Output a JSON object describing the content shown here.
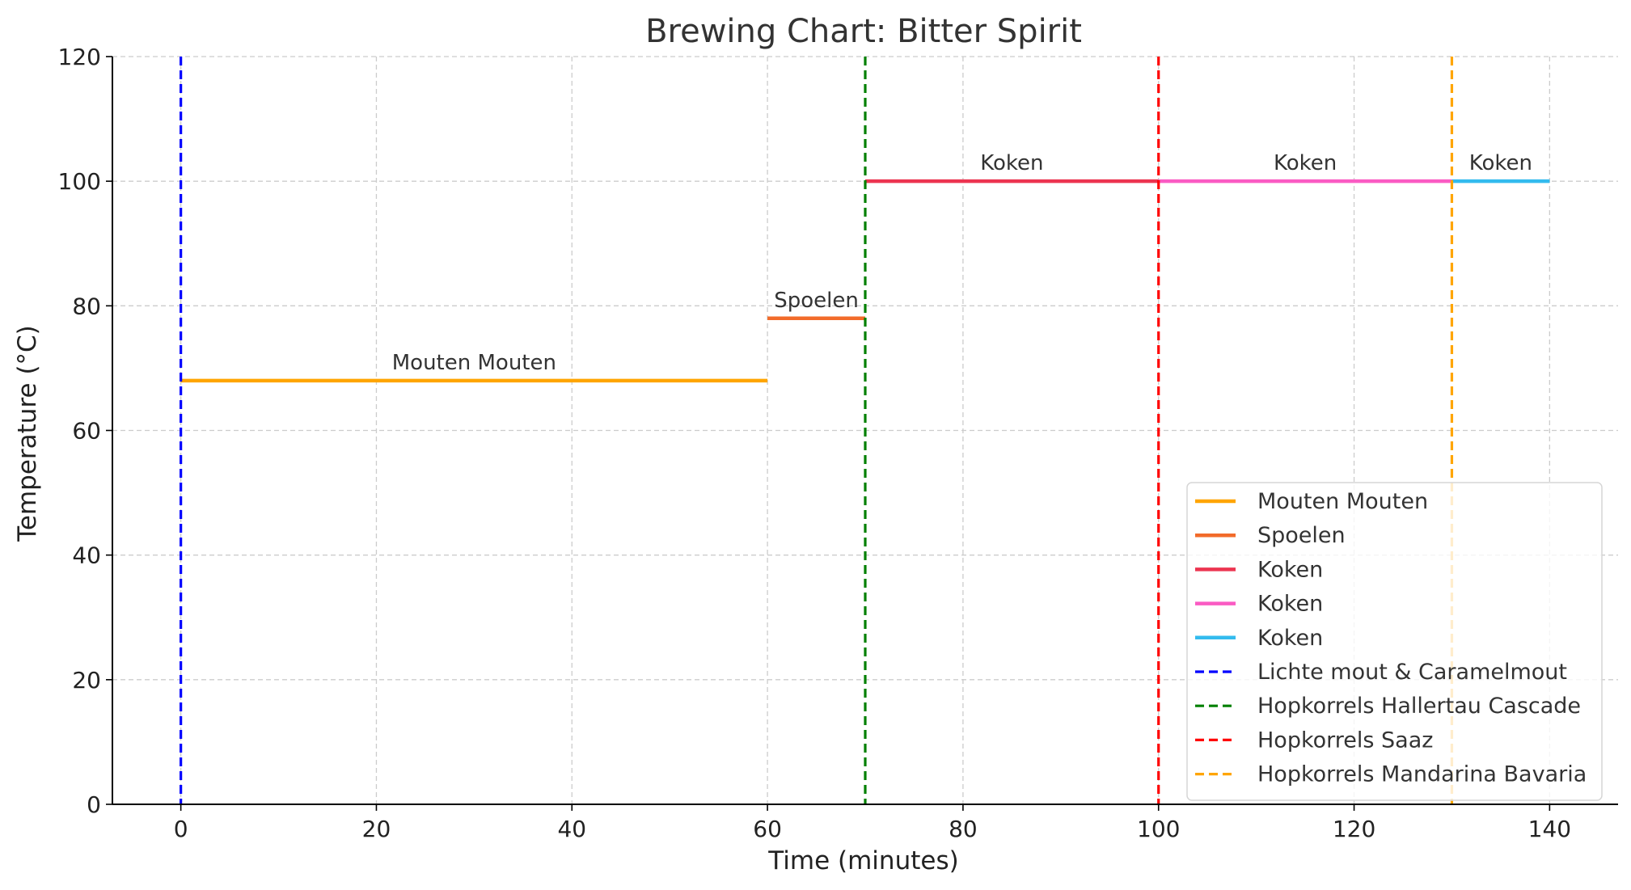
{
  "chart_data": {
    "type": "line",
    "title": "Brewing Chart: Bitter Spirit",
    "xlabel": "Time (minutes)",
    "ylabel": "Temperature (°C)",
    "xlim": [
      -7,
      147
    ],
    "ylim": [
      0,
      120
    ],
    "xticks": [
      0,
      20,
      40,
      60,
      80,
      100,
      120,
      140
    ],
    "yticks": [
      0,
      20,
      40,
      60,
      80,
      100,
      120
    ],
    "grid": true,
    "legend_position": "lower-right",
    "steps": [
      {
        "name": "Mouten Mouten",
        "x": [
          0,
          60
        ],
        "y": [
          68,
          68
        ],
        "color": "#FFA500",
        "label": "Mouten Mouten"
      },
      {
        "name": "Spoelen",
        "x": [
          60,
          70
        ],
        "y": [
          78,
          78
        ],
        "color": "#F26B2A",
        "label": "Spoelen"
      },
      {
        "name": "Koken",
        "x": [
          70,
          100
        ],
        "y": [
          100,
          100
        ],
        "color": "#EC3450",
        "label": "Koken"
      },
      {
        "name": "Koken",
        "x": [
          100,
          130
        ],
        "y": [
          100,
          100
        ],
        "color": "#FA5BC3",
        "label": "Koken"
      },
      {
        "name": "Koken",
        "x": [
          130,
          140
        ],
        "y": [
          100,
          100
        ],
        "color": "#33BBEE",
        "label": "Koken"
      }
    ],
    "additions": [
      {
        "name": "Lichte mout & Caramelmout",
        "x": 0,
        "color": "#0000FF"
      },
      {
        "name": "Hopkorrels Hallertau Cascade",
        "x": 70,
        "color": "#008000"
      },
      {
        "name": "Hopkorrels Saaz",
        "x": 100,
        "color": "#FF0000"
      },
      {
        "name": "Hopkorrels Mandarina Bavaria",
        "x": 130,
        "color": "#FFA500"
      }
    ]
  }
}
